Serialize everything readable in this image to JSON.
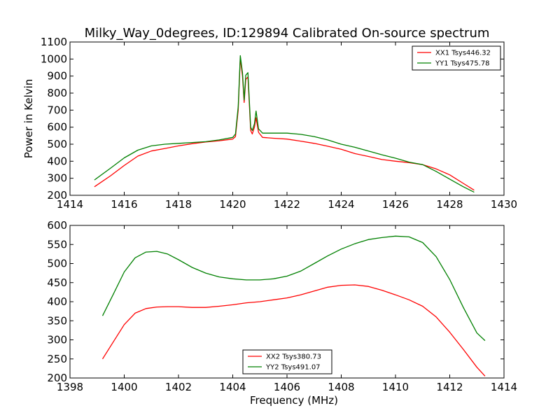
{
  "figure": {
    "title": "Milky_Way_0degrees, ID:129894 Calibrated On-source spectrum"
  },
  "chart_data": [
    {
      "type": "line",
      "title": "Milky_Way_0degrees, ID:129894 Calibrated On-source spectrum",
      "xlabel": "",
      "ylabel": "Power in Kelvin",
      "xlim": [
        1414,
        1430
      ],
      "ylim": [
        200,
        1100
      ],
      "xticks": [
        "1414",
        "1416",
        "1418",
        "1420",
        "1422",
        "1424",
        "1426",
        "1428",
        "1430"
      ],
      "yticks": [
        "200",
        "300",
        "400",
        "500",
        "600",
        "700",
        "800",
        "900",
        "1000",
        "1100"
      ],
      "grid": false,
      "legend": "top-right",
      "series": [
        {
          "name": "XX1 Tsys446.32",
          "color": "#ff0000",
          "x": [
            1414.9,
            1415.5,
            1416.0,
            1416.5,
            1417.0,
            1417.5,
            1418.0,
            1418.5,
            1419.0,
            1419.5,
            1420.0,
            1420.1,
            1420.2,
            1420.28,
            1420.36,
            1420.42,
            1420.48,
            1420.56,
            1420.66,
            1420.72,
            1420.8,
            1420.86,
            1420.95,
            1421.1,
            1421.5,
            1422.0,
            1422.5,
            1423.0,
            1423.5,
            1424.0,
            1424.5,
            1425.0,
            1425.5,
            1426.0,
            1426.5,
            1427.0,
            1427.5,
            1428.0,
            1428.5,
            1428.9
          ],
          "values": [
            250,
            315,
            375,
            430,
            460,
            475,
            490,
            503,
            513,
            520,
            530,
            545,
            700,
            1005,
            900,
            745,
            880,
            895,
            580,
            560,
            600,
            655,
            570,
            540,
            535,
            530,
            518,
            505,
            488,
            470,
            445,
            428,
            410,
            400,
            392,
            380,
            355,
            320,
            270,
            230
          ]
        },
        {
          "name": "YY1 Tsys475.78",
          "color": "#008000",
          "x": [
            1414.9,
            1415.5,
            1416.0,
            1416.5,
            1417.0,
            1417.5,
            1418.0,
            1418.5,
            1419.0,
            1419.5,
            1420.0,
            1420.1,
            1420.2,
            1420.28,
            1420.36,
            1420.42,
            1420.48,
            1420.56,
            1420.66,
            1420.72,
            1420.8,
            1420.86,
            1420.95,
            1421.1,
            1421.5,
            1422.0,
            1422.5,
            1423.0,
            1423.5,
            1424.0,
            1424.5,
            1425.0,
            1425.5,
            1426.0,
            1426.5,
            1427.0,
            1427.5,
            1428.0,
            1428.5,
            1428.9
          ],
          "values": [
            290,
            360,
            420,
            465,
            490,
            500,
            505,
            510,
            515,
            525,
            540,
            560,
            720,
            1020,
            920,
            760,
            905,
            920,
            600,
            580,
            620,
            695,
            590,
            565,
            565,
            565,
            558,
            545,
            525,
            500,
            482,
            460,
            438,
            418,
            395,
            380,
            340,
            295,
            250,
            218
          ]
        }
      ]
    },
    {
      "type": "line",
      "title": "",
      "xlabel": "Frequency (MHz)",
      "ylabel": "",
      "xlim": [
        1398,
        1414
      ],
      "ylim": [
        200,
        600
      ],
      "xticks": [
        "1398",
        "1400",
        "1402",
        "1404",
        "1406",
        "1408",
        "1410",
        "1412",
        "1414"
      ],
      "yticks": [
        "200",
        "250",
        "300",
        "350",
        "400",
        "450",
        "500",
        "550",
        "600"
      ],
      "grid": false,
      "legend": "bottom-center",
      "series": [
        {
          "name": "XX2 Tsys380.73",
          "color": "#ff0000",
          "x": [
            1399.2,
            1399.6,
            1400.0,
            1400.4,
            1400.8,
            1401.2,
            1401.6,
            1402.0,
            1402.5,
            1403.0,
            1403.5,
            1404.0,
            1404.5,
            1405.0,
            1405.5,
            1406.0,
            1406.5,
            1407.0,
            1407.5,
            1408.0,
            1408.5,
            1409.0,
            1409.5,
            1410.0,
            1410.5,
            1411.0,
            1411.5,
            1412.0,
            1412.5,
            1413.0,
            1413.3
          ],
          "values": [
            250,
            295,
            340,
            370,
            382,
            386,
            387,
            387,
            385,
            385,
            388,
            392,
            397,
            400,
            405,
            410,
            418,
            428,
            438,
            443,
            444,
            440,
            430,
            418,
            405,
            388,
            360,
            320,
            275,
            228,
            205
          ]
        },
        {
          "name": "YY2 Tsys491.07",
          "color": "#008000",
          "x": [
            1399.2,
            1399.6,
            1400.0,
            1400.4,
            1400.8,
            1401.2,
            1401.6,
            1402.0,
            1402.5,
            1403.0,
            1403.5,
            1404.0,
            1404.5,
            1405.0,
            1405.5,
            1406.0,
            1406.5,
            1407.0,
            1407.5,
            1408.0,
            1408.5,
            1409.0,
            1409.5,
            1410.0,
            1410.5,
            1411.0,
            1411.5,
            1412.0,
            1412.5,
            1413.0,
            1413.3
          ],
          "values": [
            363,
            420,
            478,
            515,
            530,
            532,
            525,
            510,
            490,
            475,
            465,
            460,
            457,
            457,
            460,
            467,
            480,
            500,
            520,
            538,
            552,
            563,
            568,
            572,
            570,
            555,
            518,
            458,
            385,
            318,
            298
          ]
        }
      ]
    }
  ]
}
